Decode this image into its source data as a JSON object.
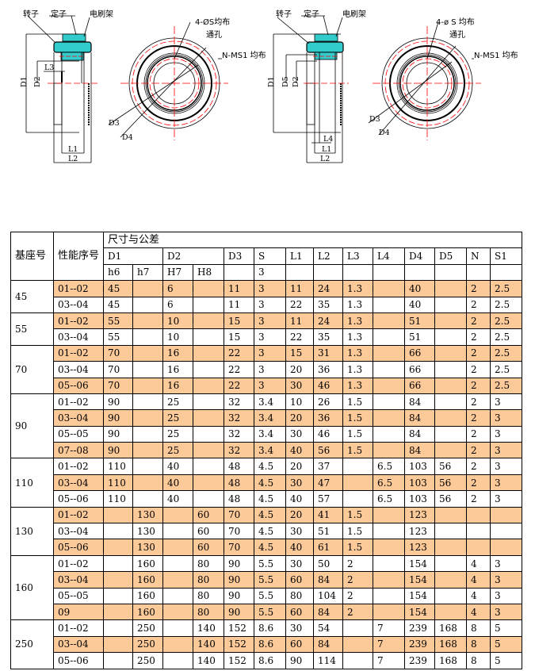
{
  "drawing_left": {
    "rotor": "转子",
    "stator": "定子",
    "brush_holder": "电刷架",
    "holes": "4-ØS均布",
    "through_hole": "通孔",
    "n_ms1": "N-MS1 均布",
    "D1": "D1",
    "D2": "D2",
    "L3": "L3",
    "L1": "L1",
    "L2": "L2",
    "D3": "D3",
    "D4": "D4"
  },
  "drawing_right": {
    "rotor": "转子",
    "stator": "定子",
    "brush_holder": "电刷架",
    "holes": "4-ø S 均布",
    "through_hole": "通孔",
    "n_ms1": "N-MS1 均布",
    "D1": "D1",
    "D5": "D5",
    "D2": "D2",
    "L4": "L4",
    "L1": "L1",
    "L2": "L2",
    "D3": "D3",
    "D4": "D4"
  },
  "colors": {
    "shade": "#fcc998",
    "centerline": "#ff0000",
    "part": "#33cccc"
  },
  "table": {
    "base_header": "基座号",
    "seq_header": "性能序号",
    "dims_header": "尺寸与公差",
    "columns": [
      "D1",
      "D2",
      "D3",
      "S",
      "L1",
      "L2",
      "L3",
      "L4",
      "D4",
      "D5",
      "N",
      "S1"
    ],
    "tolerances": [
      "h6",
      "h7",
      "H7",
      "H8",
      "",
      "3",
      "",
      "",
      "",
      "",
      "",
      "",
      "",
      ""
    ],
    "groups": [
      {
        "base": "45",
        "rows": [
          {
            "shade": true,
            "cells": [
              "01--02",
              "45",
              "",
              "6",
              "",
              "11",
              "3",
              "11",
              "24",
              "1.3",
              "",
              "40",
              "",
              "2",
              "2.5"
            ]
          },
          {
            "shade": false,
            "cells": [
              "03--04",
              "45",
              "",
              "6",
              "",
              "11",
              "3",
              "22",
              "35",
              "1.3",
              "",
              "40",
              "",
              "2",
              "2.5"
            ]
          }
        ]
      },
      {
        "base": "55",
        "rows": [
          {
            "shade": true,
            "cells": [
              "01--02",
              "55",
              "",
              "10",
              "",
              "15",
              "3",
              "11",
              "24",
              "1.3",
              "",
              "51",
              "",
              "2",
              "2.5"
            ]
          },
          {
            "shade": false,
            "cells": [
              "03--04",
              "55",
              "",
              "10",
              "",
              "15",
              "3",
              "22",
              "35",
              "1.3",
              "",
              "51",
              "",
              "2",
              "2.5"
            ]
          }
        ]
      },
      {
        "base": "70",
        "rows": [
          {
            "shade": true,
            "cells": [
              "01--02",
              "70",
              "",
              "16",
              "",
              "22",
              "3",
              "15",
              "31",
              "1.3",
              "",
              "66",
              "",
              "2",
              "2.5"
            ]
          },
          {
            "shade": false,
            "cells": [
              "03--04",
              "70",
              "",
              "16",
              "",
              "22",
              "3",
              "20",
              "36",
              "1.3",
              "",
              "66",
              "",
              "2",
              "2.5"
            ]
          },
          {
            "shade": true,
            "cells": [
              "05--06",
              "70",
              "",
              "16",
              "",
              "22",
              "3",
              "30",
              "46",
              "1.3",
              "",
              "66",
              "",
              "2",
              "2.5"
            ]
          }
        ]
      },
      {
        "base": "90",
        "rows": [
          {
            "shade": false,
            "cells": [
              "01--02",
              "90",
              "",
              "25",
              "",
              "32",
              "3.4",
              "10",
              "26",
              "1.5",
              "",
              "84",
              "",
              "2",
              "3"
            ]
          },
          {
            "shade": true,
            "cells": [
              "03--04",
              "90",
              "",
              "25",
              "",
              "32",
              "3.4",
              "20",
              "36",
              "1.5",
              "",
              "84",
              "",
              "2",
              "3"
            ]
          },
          {
            "shade": false,
            "cells": [
              "05--05",
              "90",
              "",
              "25",
              "",
              "32",
              "3.4",
              "30",
              "46",
              "1.5",
              "",
              "84",
              "",
              "2",
              "3"
            ]
          },
          {
            "shade": true,
            "cells": [
              "07--08",
              "90",
              "",
              "25",
              "",
              "32",
              "3.4",
              "40",
              "56",
              "1.5",
              "",
              "84",
              "",
              "2",
              "3"
            ]
          }
        ]
      },
      {
        "base": "110",
        "rows": [
          {
            "shade": false,
            "cells": [
              "01--02",
              "110",
              "",
              "40",
              "",
              "48",
              "4.5",
              "20",
              "37",
              "",
              "6.5",
              "103",
              "56",
              "2",
              "3"
            ]
          },
          {
            "shade": true,
            "cells": [
              "03--04",
              "110",
              "",
              "40",
              "",
              "48",
              "4.5",
              "30",
              "47",
              "",
              "6.5",
              "103",
              "56",
              "2",
              "3"
            ]
          },
          {
            "shade": false,
            "cells": [
              "05--06",
              "110",
              "",
              "40",
              "",
              "48",
              "4.5",
              "40",
              "57",
              "",
              "6.5",
              "103",
              "56",
              "2",
              "3"
            ]
          }
        ]
      },
      {
        "base": "130",
        "rows": [
          {
            "shade": true,
            "cells": [
              "01--02",
              "",
              "130",
              "",
              "60",
              "70",
              "4.5",
              "20",
              "41",
              "1.5",
              "",
              "123",
              "",
              "",
              ""
            ]
          },
          {
            "shade": false,
            "cells": [
              "03--04",
              "",
              "130",
              "",
              "60",
              "70",
              "4.5",
              "30",
              "51",
              "1.5",
              "",
              "123",
              "",
              "",
              ""
            ]
          },
          {
            "shade": true,
            "cells": [
              "05--06",
              "",
              "130",
              "",
              "60",
              "70",
              "4.5",
              "40",
              "61",
              "1.5",
              "",
              "123",
              "",
              "",
              ""
            ]
          }
        ]
      },
      {
        "base": "160",
        "rows": [
          {
            "shade": false,
            "cells": [
              "01--02",
              "",
              "160",
              "",
              "80",
              "90",
              "5.5",
              "30",
              "50",
              "2",
              "",
              "154",
              "",
              "4",
              "3"
            ]
          },
          {
            "shade": true,
            "cells": [
              "03--04",
              "",
              "160",
              "",
              "80",
              "90",
              "5.5",
              "60",
              "84",
              "2",
              "",
              "154",
              "",
              "4",
              "3"
            ]
          },
          {
            "shade": false,
            "cells": [
              "05--05",
              "",
              "160",
              "",
              "80",
              "90",
              "5.5",
              "80",
              "104",
              "2",
              "",
              "154",
              "",
              "4",
              "3"
            ]
          },
          {
            "shade": true,
            "cells": [
              "09",
              "",
              "160",
              "",
              "80",
              "90",
              "5.5",
              "60",
              "84",
              "2",
              "",
              "154",
              "",
              "4",
              "3"
            ]
          }
        ]
      },
      {
        "base": "250",
        "rows": [
          {
            "shade": false,
            "cells": [
              "01--02",
              "",
              "250",
              "",
              "140",
              "152",
              "8.6",
              "30",
              "54",
              "",
              "7",
              "239",
              "168",
              "8",
              "5"
            ]
          },
          {
            "shade": true,
            "cells": [
              "03--04",
              "",
              "250",
              "",
              "140",
              "152",
              "8.6",
              "60",
              "84",
              "",
              "7",
              "239",
              "168",
              "8",
              "5"
            ]
          },
          {
            "shade": false,
            "cells": [
              "05--06",
              "",
              "250",
              "",
              "140",
              "152",
              "8.6",
              "90",
              "114",
              "",
              "7",
              "239",
              "168",
              "8",
              "5"
            ]
          }
        ]
      }
    ]
  }
}
